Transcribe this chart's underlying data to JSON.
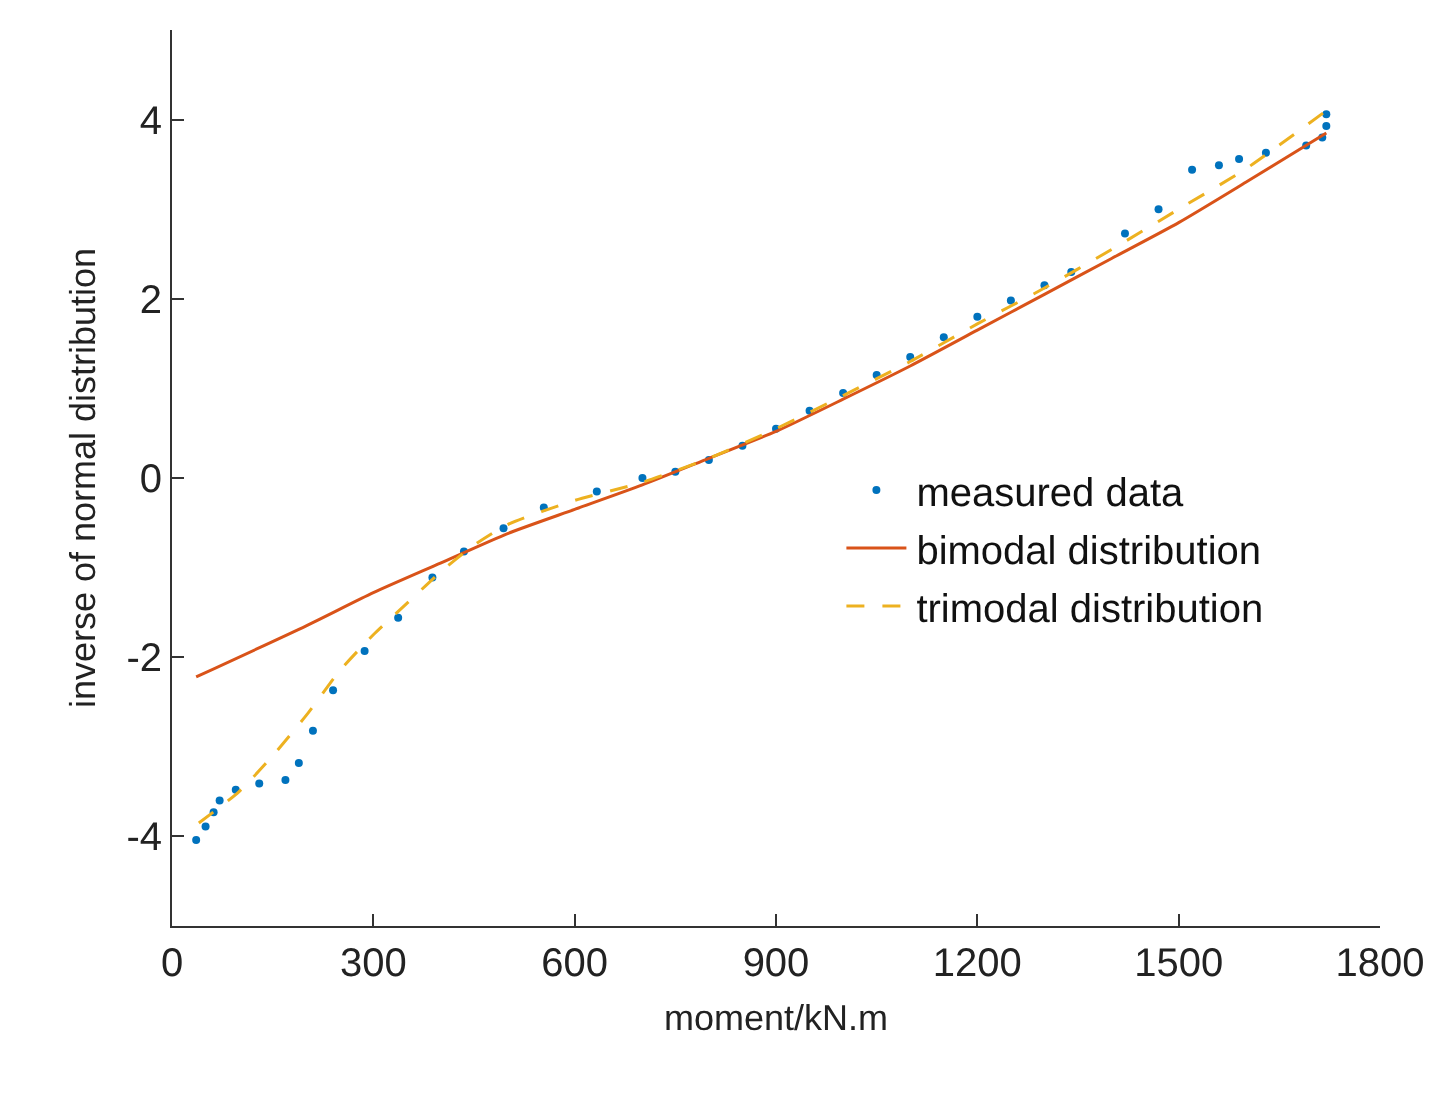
{
  "chart_data": {
    "type": "scatter",
    "xlabel": "moment/kN.m",
    "ylabel": "inverse of normal distribution",
    "xlim": [
      0,
      1800
    ],
    "xticks": [
      0,
      300,
      600,
      900,
      1200,
      1500,
      1800
    ],
    "ylim": [
      -5,
      5
    ],
    "yticks": [
      -4,
      -2,
      0,
      2,
      4
    ],
    "grid": false,
    "legend": "right",
    "series": [
      {
        "name": "measured data",
        "marker": "circle",
        "color": "#0072bd",
        "x": [
          36,
          50,
          62,
          71,
          95,
          130,
          169,
          189,
          210,
          240,
          287,
          337,
          388,
          435,
          494,
          554,
          633,
          701,
          750,
          800,
          850,
          900,
          950,
          1000,
          1050,
          1100,
          1150,
          1200,
          1250,
          1300,
          1340,
          1420,
          1470,
          1520,
          1560,
          1590,
          1630,
          1690,
          1714,
          1720,
          1720
        ],
        "values": [
          -4.04,
          -3.89,
          -3.73,
          -3.6,
          -3.48,
          -3.41,
          -3.37,
          -3.18,
          -2.82,
          -2.37,
          -1.93,
          -1.56,
          -1.11,
          -0.82,
          -0.56,
          -0.33,
          -0.15,
          0,
          0.07,
          0.2,
          0.36,
          0.55,
          0.75,
          0.95,
          1.15,
          1.35,
          1.57,
          1.8,
          1.98,
          2.15,
          2.3,
          2.73,
          3.0,
          3.44,
          3.49,
          3.56,
          3.63,
          3.71,
          3.8,
          3.93,
          4.06
        ]
      },
      {
        "name": "bimodal distribution",
        "type": "line",
        "line_style": "solid",
        "color": "#d95319",
        "x": [
          36,
          200,
          300,
          400,
          500,
          600,
          700,
          800,
          900,
          1000,
          1100,
          1200,
          1300,
          1400,
          1500,
          1600,
          1720
        ],
        "values": [
          -2.22,
          -1.65,
          -1.28,
          -0.95,
          -0.62,
          -0.35,
          -0.08,
          0.22,
          0.52,
          0.88,
          1.25,
          1.65,
          2.05,
          2.45,
          2.85,
          3.3,
          3.85
        ]
      },
      {
        "name": "trimodal distribution",
        "type": "line",
        "line_style": "dashed",
        "color": "#edb120",
        "x": [
          40,
          100,
          150,
          200,
          250,
          300,
          350,
          400,
          450,
          500,
          600,
          700,
          800,
          900,
          1000,
          1100,
          1200,
          1300,
          1400,
          1500,
          1600,
          1720
        ],
        "values": [
          -3.85,
          -3.5,
          -3.1,
          -2.65,
          -2.15,
          -1.75,
          -1.4,
          -1.05,
          -0.75,
          -0.52,
          -0.25,
          -0.05,
          0.22,
          0.55,
          0.92,
          1.3,
          1.72,
          2.12,
          2.55,
          3.0,
          3.45,
          4.1
        ]
      }
    ]
  }
}
